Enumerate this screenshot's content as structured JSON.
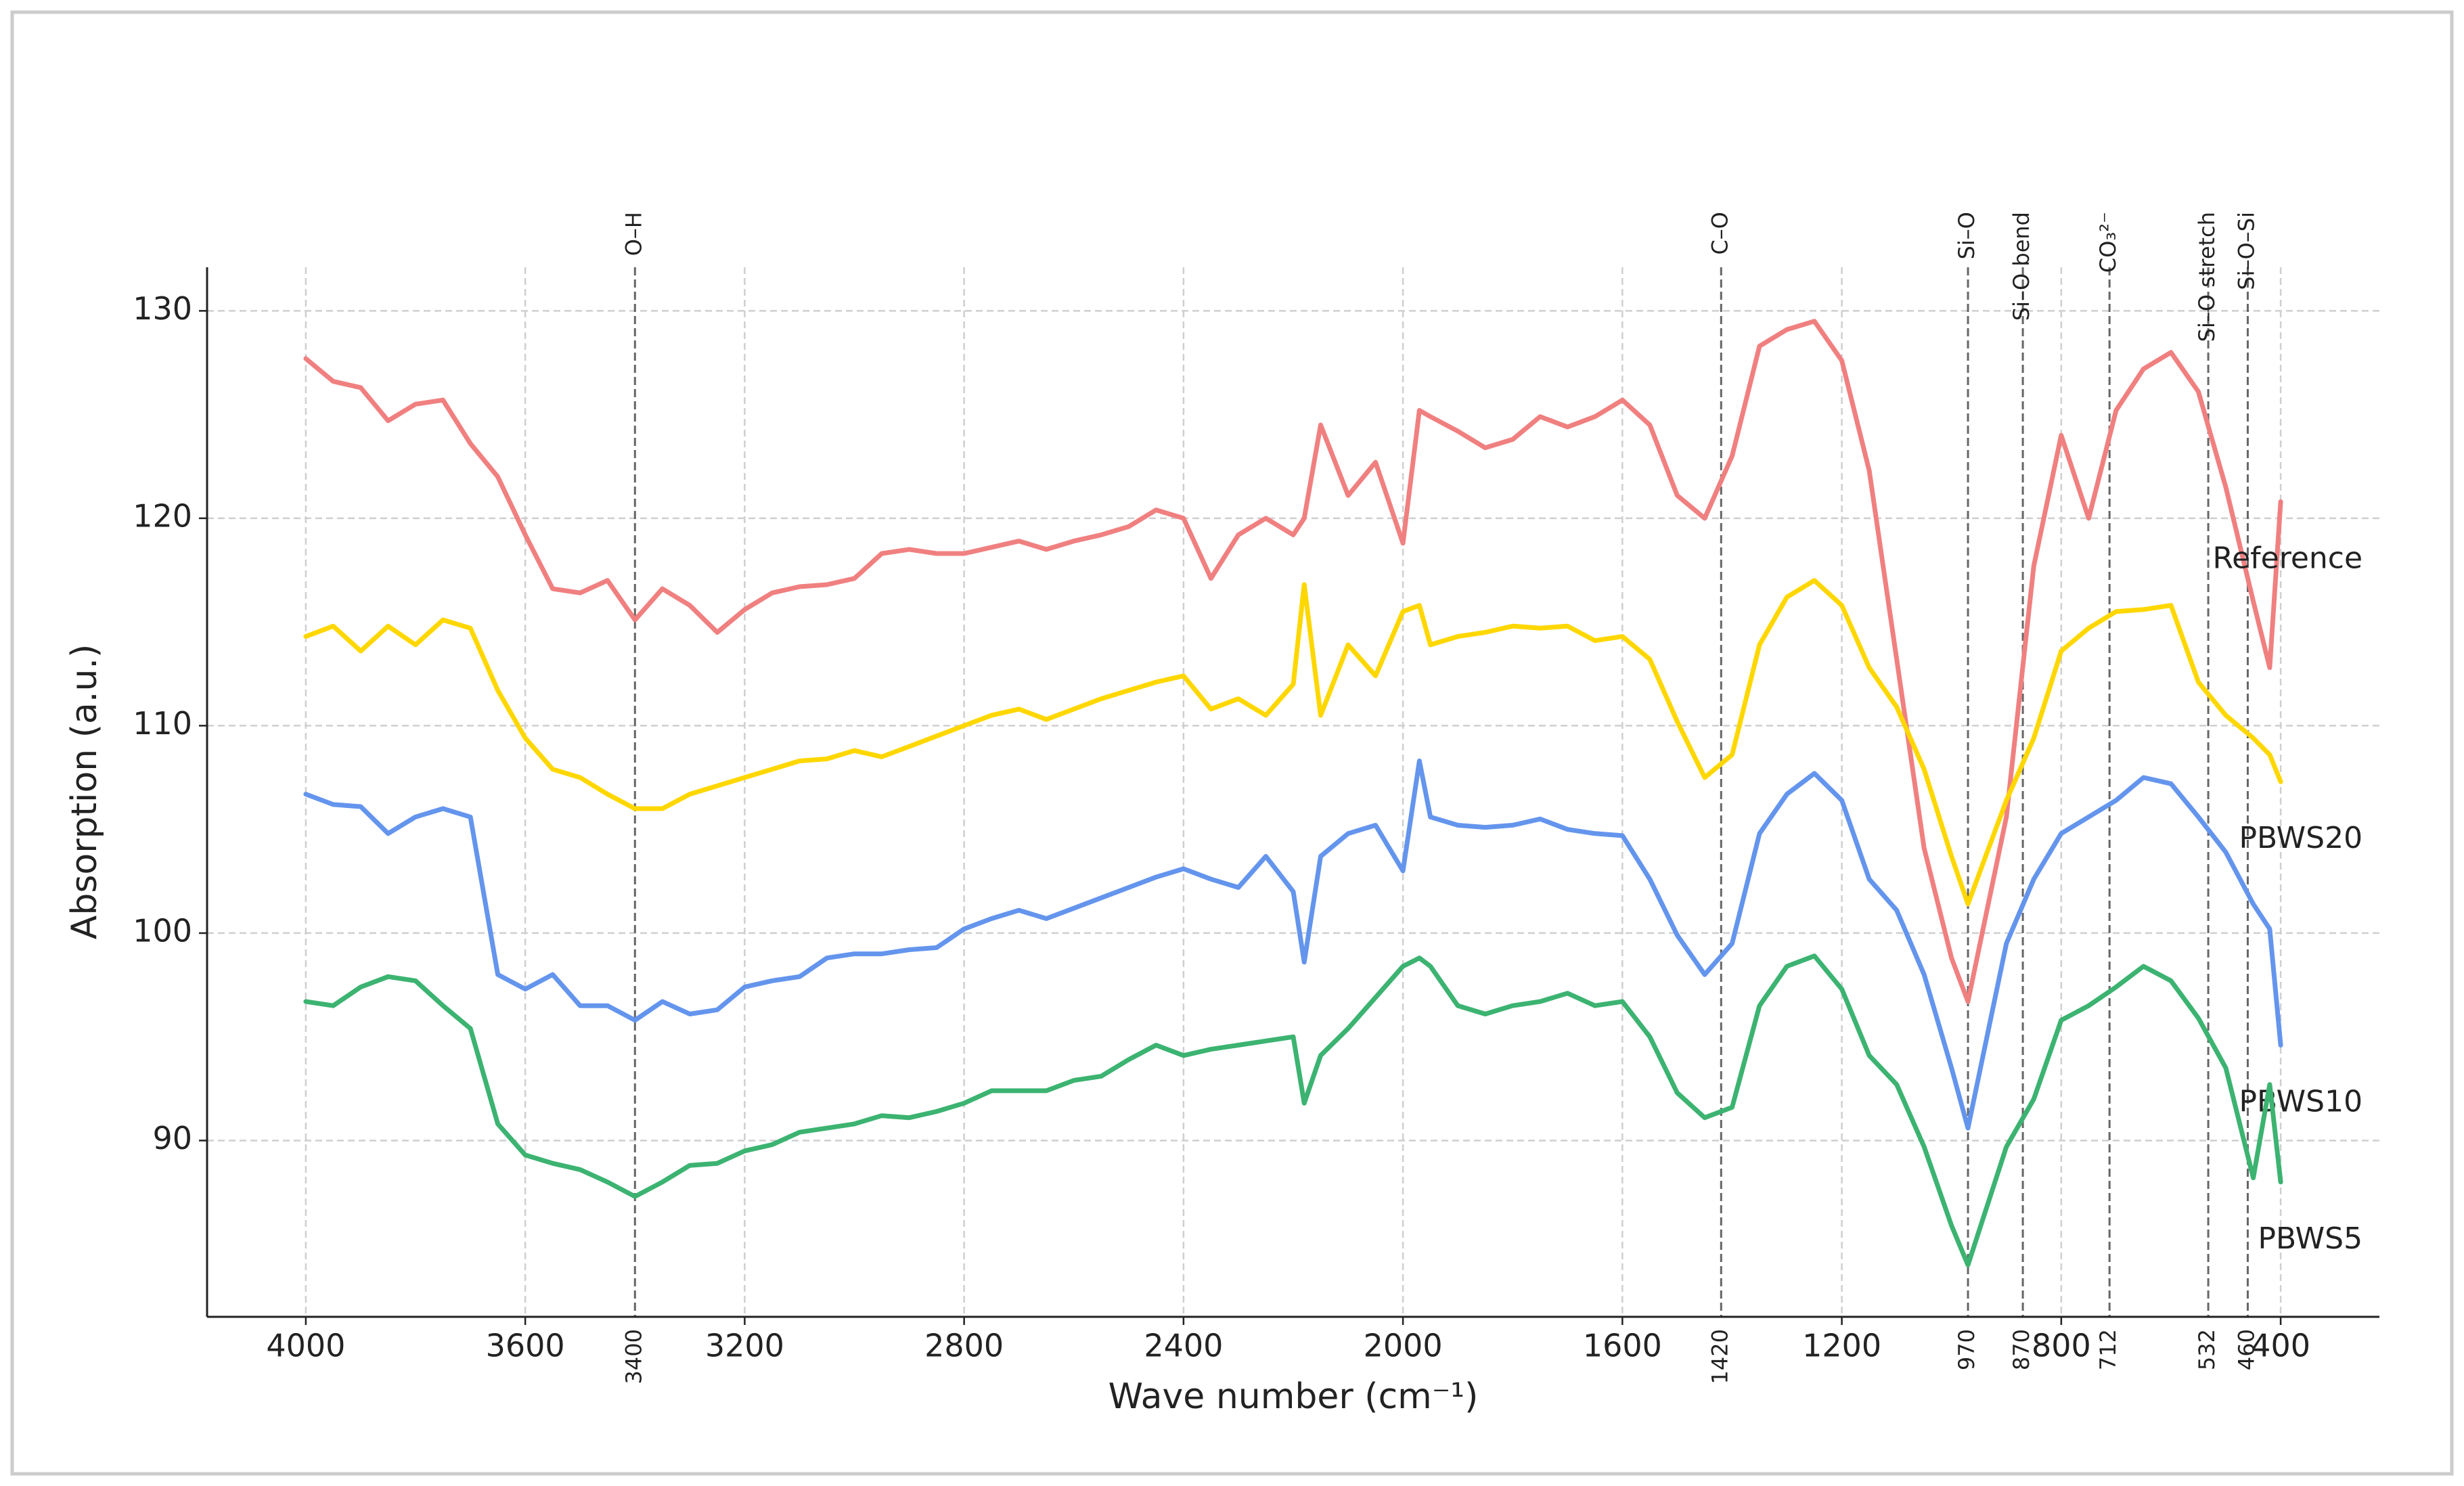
{
  "chart_data": {
    "type": "line",
    "xlabel": "Wave number (cm⁻¹)",
    "ylabel": "Absorption (a.u.)",
    "xlim": [
      4180,
      220
    ],
    "ylim": [
      81.5,
      132.1
    ],
    "xticks": [
      4000,
      3600,
      3200,
      2800,
      2400,
      2000,
      1600,
      1200,
      800,
      400
    ],
    "yticks": [
      90,
      100,
      110,
      120,
      130
    ],
    "grid": true,
    "x": [
      4000,
      3950,
      3900,
      3850,
      3800,
      3750,
      3700,
      3650,
      3600,
      3550,
      3500,
      3450,
      3400,
      3350,
      3300,
      3250,
      3200,
      3150,
      3100,
      3050,
      3000,
      2950,
      2900,
      2850,
      2800,
      2750,
      2700,
      2650,
      2600,
      2550,
      2500,
      2450,
      2400,
      2350,
      2300,
      2250,
      2200,
      2180,
      2150,
      2100,
      2050,
      2000,
      1970,
      1950,
      1900,
      1850,
      1800,
      1750,
      1700,
      1650,
      1600,
      1550,
      1500,
      1450,
      1400,
      1350,
      1300,
      1250,
      1200,
      1150,
      1100,
      1050,
      1000,
      970,
      900,
      850,
      800,
      750,
      700,
      650,
      600,
      550,
      500,
      450,
      420,
      400
    ],
    "series": [
      {
        "name": "Reference",
        "color": "#f08080",
        "values": [
          127.7,
          126.6,
          126.3,
          124.7,
          125.5,
          125.7,
          123.6,
          122.0,
          119.2,
          116.6,
          116.4,
          117.0,
          115.1,
          116.6,
          115.8,
          114.5,
          115.6,
          116.4,
          116.7,
          116.8,
          117.1,
          118.3,
          118.5,
          118.3,
          118.3,
          118.6,
          118.9,
          118.5,
          118.9,
          119.2,
          119.6,
          120.4,
          120.0,
          117.1,
          119.2,
          120.0,
          119.2,
          120.0,
          124.5,
          121.1,
          122.7,
          118.8,
          125.2,
          124.9,
          124.2,
          123.4,
          123.8,
          124.9,
          124.4,
          124.9,
          125.7,
          124.5,
          121.1,
          120.0,
          123.0,
          128.3,
          129.1,
          129.5,
          127.6,
          122.3,
          113.2,
          104.1,
          98.8,
          96.7,
          105.6,
          117.7,
          124.0,
          120.0,
          125.2,
          127.2,
          128.0,
          126.1,
          121.5,
          116.0,
          112.8,
          120.8
        ]
      },
      {
        "name": "PBWS20",
        "color": "#ffd700",
        "values": [
          114.3,
          114.8,
          113.6,
          114.8,
          113.9,
          115.1,
          114.7,
          111.7,
          109.4,
          107.9,
          107.5,
          106.7,
          106.0,
          106.0,
          106.7,
          107.1,
          107.5,
          107.9,
          108.3,
          108.4,
          108.8,
          108.5,
          109.0,
          109.5,
          110.0,
          110.5,
          110.8,
          110.3,
          110.8,
          111.3,
          111.7,
          112.1,
          112.4,
          110.8,
          111.3,
          110.5,
          112.0,
          116.8,
          110.5,
          113.9,
          112.4,
          115.5,
          115.8,
          113.9,
          114.3,
          114.5,
          114.8,
          114.7,
          114.8,
          114.1,
          114.3,
          113.2,
          110.2,
          107.5,
          108.6,
          113.9,
          116.2,
          117.0,
          115.8,
          112.8,
          110.9,
          107.9,
          103.7,
          101.4,
          106.4,
          109.4,
          113.6,
          114.7,
          115.5,
          115.6,
          115.8,
          112.1,
          110.5,
          109.4,
          108.6,
          107.3
        ]
      },
      {
        "name": "PBWS10",
        "color": "#6495ed",
        "values": [
          106.7,
          106.2,
          106.1,
          104.8,
          105.6,
          106.0,
          105.6,
          98.0,
          97.3,
          98.0,
          96.5,
          96.5,
          95.8,
          96.7,
          96.1,
          96.3,
          97.4,
          97.7,
          97.9,
          98.8,
          99.0,
          99.0,
          99.2,
          99.3,
          100.2,
          100.7,
          101.1,
          100.7,
          101.2,
          101.7,
          102.2,
          102.7,
          103.1,
          102.6,
          102.2,
          103.7,
          102.0,
          98.6,
          103.7,
          104.8,
          105.2,
          103.0,
          108.3,
          105.6,
          105.2,
          105.1,
          105.2,
          105.5,
          105.0,
          104.8,
          104.7,
          102.6,
          99.9,
          98.0,
          99.5,
          104.8,
          106.7,
          107.7,
          106.4,
          102.6,
          101.1,
          98.0,
          93.5,
          90.6,
          99.5,
          102.6,
          104.8,
          105.6,
          106.4,
          107.5,
          107.2,
          105.6,
          103.9,
          101.4,
          100.2,
          94.6
        ]
      },
      {
        "name": "PBWS5",
        "color": "#3cb371",
        "values": [
          96.7,
          96.5,
          97.4,
          97.9,
          97.7,
          96.5,
          95.4,
          90.8,
          89.3,
          88.9,
          88.6,
          88.0,
          87.3,
          88.0,
          88.8,
          88.9,
          89.5,
          89.8,
          90.4,
          90.6,
          90.8,
          91.2,
          91.1,
          91.4,
          91.8,
          92.4,
          92.4,
          92.4,
          92.9,
          93.1,
          93.9,
          94.6,
          94.1,
          94.4,
          94.6,
          94.8,
          95.0,
          91.8,
          94.1,
          95.4,
          96.9,
          98.4,
          98.8,
          98.4,
          96.5,
          96.1,
          96.5,
          96.7,
          97.1,
          96.5,
          96.7,
          95.0,
          92.3,
          91.1,
          91.6,
          96.5,
          98.4,
          98.9,
          97.3,
          94.1,
          92.7,
          89.7,
          85.9,
          84.0,
          89.7,
          92.0,
          95.8,
          96.5,
          97.4,
          98.4,
          97.7,
          95.9,
          93.5,
          88.2,
          92.7,
          88.0
        ]
      }
    ],
    "annotations": [
      {
        "x": 3400,
        "label": "O–H"
      },
      {
        "x": 1420,
        "label": "C–O"
      },
      {
        "x": 970,
        "label": "Si–O"
      },
      {
        "x": 870,
        "label": "Si–O bend"
      },
      {
        "x": 712,
        "label": "CO₃²⁻"
      },
      {
        "x": 532,
        "label": "Si–O stretch"
      },
      {
        "x": 460,
        "label": "Si–O–Si"
      }
    ]
  }
}
